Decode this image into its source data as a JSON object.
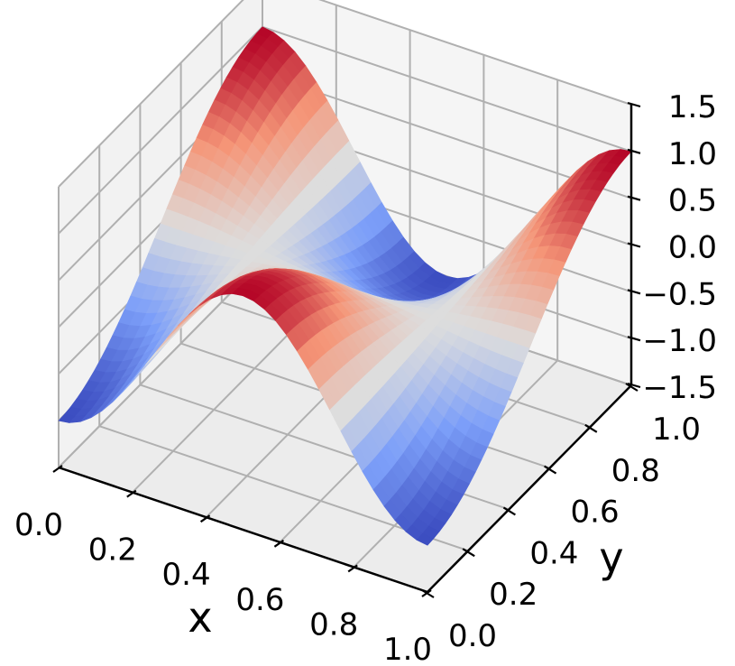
{
  "chart_data": {
    "type": "surface",
    "function": "z = cos(2*pi*x) * cos(pi*(y - 1))",
    "xlabel": "x",
    "ylabel": "y",
    "zlabel": "",
    "xlim": [
      0.0,
      1.0
    ],
    "ylim": [
      0.0,
      1.0
    ],
    "zlim": [
      -1.5,
      1.5
    ],
    "x_ticks": [
      "0.0",
      "0.2",
      "0.4",
      "0.6",
      "0.8",
      "1.0"
    ],
    "y_ticks": [
      "0.0",
      "0.2",
      "0.4",
      "0.6",
      "0.8",
      "1.0"
    ],
    "z_ticks": [
      "−1.5",
      "−1.0",
      "−0.5",
      "0.0",
      "0.5",
      "1.0",
      "1.5"
    ],
    "colormap": "coolwarm",
    "colormap_min": "#3b4cc0",
    "colormap_mid": "#dddddd",
    "colormap_max": "#b40426",
    "grid": true,
    "z_min": -1.0,
    "z_max": 1.0
  }
}
